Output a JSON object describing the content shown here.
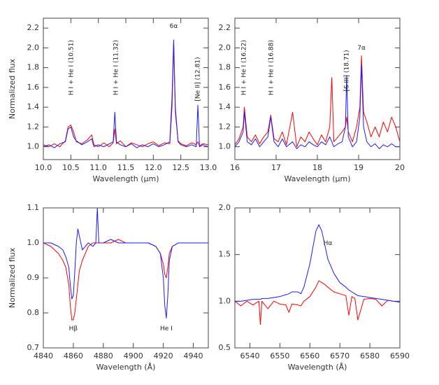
{
  "chart_data": [
    {
      "type": "line",
      "xlabel": "Wavelength (μm)",
      "ylabel": "Normalized flux",
      "xlim": [
        10.0,
        13.0
      ],
      "ylim": [
        0.87,
        2.3
      ],
      "xticks": [
        {
          "value": 10,
          "label": "10.0"
        },
        10.5,
        {
          "value": 11,
          "label": "11.0"
        },
        11.5,
        {
          "value": 12,
          "label": "12.0"
        },
        12.5,
        {
          "value": 13,
          "label": "13.0"
        }
      ],
      "yticks": [
        {
          "value": 1,
          "label": "1.0"
        },
        1.2,
        1.4,
        1.6,
        1.8,
        {
          "value": 2,
          "label": "2.0"
        },
        2.2
      ],
      "x": [
        10.0,
        10.1,
        10.2,
        10.3,
        10.4,
        10.45,
        10.5,
        10.55,
        10.6,
        10.7,
        10.8,
        10.88,
        10.92,
        11.0,
        11.1,
        11.2,
        11.27,
        11.3,
        11.33,
        11.4,
        11.5,
        11.6,
        11.7,
        11.8,
        11.9,
        12.0,
        12.1,
        12.2,
        12.3,
        12.34,
        12.37,
        12.4,
        12.45,
        12.5,
        12.6,
        12.7,
        12.78,
        12.81,
        12.84,
        12.9,
        13.0
      ],
      "series": [
        {
          "color": "#ff0000",
          "values": [
            1.02,
            1.0,
            1.03,
            1.0,
            1.06,
            1.2,
            1.22,
            1.15,
            1.05,
            1.03,
            1.07,
            1.12,
            1.02,
            1.0,
            1.04,
            1.0,
            1.04,
            1.18,
            1.03,
            1.06,
            1.0,
            1.04,
            1.02,
            1.0,
            1.03,
            1.05,
            1.01,
            1.04,
            1.03,
            1.4,
            2.05,
            1.35,
            1.06,
            1.03,
            1.01,
            1.04,
            1.02,
            1.05,
            1.01,
            1.03,
            1.02
          ]
        },
        {
          "color": "#1a1aff",
          "values": [
            1.0,
            1.02,
            0.99,
            1.03,
            1.05,
            1.18,
            1.2,
            1.1,
            1.06,
            1.02,
            1.05,
            1.08,
            1.0,
            1.02,
            1.0,
            1.03,
            1.05,
            1.35,
            1.05,
            1.02,
            1.0,
            1.03,
            0.99,
            1.02,
            1.0,
            1.03,
            1.0,
            1.02,
            1.05,
            1.5,
            2.08,
            1.4,
            1.05,
            1.02,
            1.0,
            1.02,
            1.0,
            1.42,
            1.0,
            1.02,
            1.0
          ]
        }
      ],
      "annotations": [
        {
          "text": "H I + He I (10.51)",
          "x": 10.51,
          "y": 1.52
        },
        {
          "text": "H I + He I (11.32)",
          "x": 11.32,
          "y": 1.52
        },
        {
          "text": "6α",
          "x": 12.37,
          "y": 2.22
        },
        {
          "text": "[Ne II] (12.81)",
          "x": 12.81,
          "y": 1.46
        }
      ]
    },
    {
      "type": "line",
      "xlabel": "Wavelength (μm)",
      "xlim": [
        16,
        20
      ],
      "ylim": [
        0.87,
        2.3
      ],
      "xticks": [
        16,
        17,
        18,
        19,
        20
      ],
      "yticks": [
        {
          "value": 1,
          "label": "1.0"
        },
        1.2,
        1.4,
        1.6,
        1.8,
        {
          "value": 2,
          "label": "2.0"
        },
        2.2
      ],
      "x": [
        16.0,
        16.1,
        16.2,
        16.23,
        16.3,
        16.4,
        16.5,
        16.6,
        16.7,
        16.8,
        16.87,
        16.95,
        17.05,
        17.15,
        17.25,
        17.4,
        17.5,
        17.6,
        17.7,
        17.8,
        17.9,
        18.0,
        18.1,
        18.2,
        18.3,
        18.35,
        18.4,
        18.5,
        18.6,
        18.68,
        18.71,
        18.75,
        18.85,
        18.95,
        19.03,
        19.07,
        19.12,
        19.2,
        19.3,
        19.4,
        19.5,
        19.6,
        19.7,
        19.8,
        19.9,
        20.0
      ],
      "series": [
        {
          "color": "#ff0000",
          "values": [
            1.02,
            1.08,
            1.2,
            1.4,
            1.1,
            1.05,
            1.12,
            1.03,
            1.1,
            1.15,
            1.32,
            1.08,
            1.05,
            1.15,
            1.02,
            1.35,
            1.0,
            1.1,
            1.05,
            1.15,
            1.08,
            1.02,
            1.12,
            1.05,
            1.2,
            1.7,
            1.05,
            1.1,
            1.15,
            1.2,
            1.3,
            1.15,
            1.05,
            1.2,
            1.4,
            1.92,
            1.35,
            1.25,
            1.1,
            1.2,
            1.1,
            1.25,
            1.15,
            1.3,
            1.2,
            1.05
          ]
        },
        {
          "color": "#1a1aff",
          "values": [
            1.0,
            1.05,
            1.15,
            1.35,
            1.05,
            1.02,
            1.08,
            1.0,
            1.05,
            1.1,
            1.3,
            1.05,
            1.0,
            1.08,
            1.0,
            1.05,
            0.98,
            1.02,
            1.0,
            1.05,
            1.02,
            1.0,
            1.05,
            1.02,
            1.1,
            1.05,
            1.0,
            1.03,
            1.05,
            1.2,
            1.72,
            1.1,
            1.0,
            1.05,
            1.3,
            1.83,
            1.2,
            1.05,
            1.0,
            1.03,
            0.98,
            1.02,
            1.0,
            1.03,
            1.0,
            1.0
          ]
        }
      ],
      "annotations": [
        {
          "text": "H I + He I (16.22)",
          "x": 16.22,
          "y": 1.52
        },
        {
          "text": "H I + He I (16.88)",
          "x": 16.88,
          "y": 1.52
        },
        {
          "text": "[S III] (18.71)",
          "x": 18.71,
          "y": 1.56
        },
        {
          "text": "7α",
          "x": 19.07,
          "y": 2.0
        }
      ]
    },
    {
      "type": "line",
      "xlabel": "Wavelength (Å)",
      "ylabel": "Normalized flux",
      "xlim": [
        4840,
        4950
      ],
      "ylim": [
        0.7,
        1.1
      ],
      "xticks": [
        4840,
        4860,
        4880,
        4900,
        4920,
        4940
      ],
      "yticks": [
        0.7,
        0.8,
        0.9,
        {
          "value": 1,
          "label": "1.0"
        },
        1.1
      ],
      "x": [
        4840,
        4845,
        4850,
        4853,
        4855,
        4857,
        4858,
        4859,
        4860,
        4861,
        4862,
        4863,
        4864,
        4866,
        4868,
        4870,
        4873,
        4875,
        4876,
        4877,
        4880,
        4885,
        4890,
        4895,
        4900,
        4905,
        4910,
        4915,
        4918,
        4920,
        4921,
        4922,
        4923,
        4924,
        4926,
        4930,
        4935,
        4940,
        4945,
        4950
      ],
      "series": [
        {
          "color": "#ff0000",
          "values": [
            1.0,
            0.99,
            0.97,
            0.95,
            0.93,
            0.88,
            0.82,
            0.78,
            0.78,
            0.8,
            0.84,
            0.88,
            0.92,
            0.95,
            0.97,
            0.99,
            1.0,
            1.0,
            1.0,
            1.0,
            1.0,
            1.0,
            1.01,
            1.0,
            1.0,
            1.0,
            1.0,
            0.99,
            0.97,
            0.94,
            0.91,
            0.9,
            0.93,
            0.97,
            0.99,
            1.0,
            1.0,
            1.0,
            1.0,
            1.0
          ]
        },
        {
          "color": "#1a1aff",
          "values": [
            1.0,
            1.0,
            0.99,
            0.98,
            0.96,
            0.93,
            0.88,
            0.84,
            0.85,
            0.92,
            1.0,
            1.04,
            1.02,
            0.98,
            0.99,
            1.0,
            0.99,
            1.0,
            1.1,
            1.0,
            1.0,
            1.01,
            1.0,
            1.0,
            1.0,
            1.0,
            1.0,
            0.99,
            0.97,
            0.9,
            0.82,
            0.785,
            0.85,
            0.95,
            0.99,
            1.0,
            1.0,
            1.0,
            1.0,
            1.0
          ]
        }
      ],
      "annotations": [
        {
          "text": "Hβ",
          "x": 4860,
          "y": 0.755
        },
        {
          "text": "He I",
          "x": 4922,
          "y": 0.755
        }
      ]
    },
    {
      "type": "line",
      "xlabel": "Wavelength (Å)",
      "xlim": [
        6535,
        6590
      ],
      "ylim": [
        0.5,
        2.0
      ],
      "xticks": [
        6540,
        6550,
        6560,
        6570,
        6580,
        6590
      ],
      "yticks": [
        0.5,
        {
          "value": 1,
          "label": "1.0"
        },
        1.5,
        {
          "value": 2,
          "label": "2.0"
        }
      ],
      "x": [
        6535,
        6537,
        6539,
        6541,
        6543,
        6543.5,
        6544,
        6546,
        6548,
        6550,
        6552,
        6553,
        6554,
        6556,
        6557,
        6558,
        6560,
        6562,
        6563,
        6564,
        6565,
        6566,
        6568,
        6570,
        6572,
        6573,
        6574,
        6575,
        6576,
        6578,
        6580,
        6582,
        6584,
        6586,
        6588,
        6590
      ],
      "series": [
        {
          "color": "#ff0000",
          "values": [
            1.0,
            0.95,
            1.0,
            0.96,
            1.0,
            0.75,
            1.0,
            0.92,
            1.0,
            0.97,
            0.96,
            0.88,
            0.97,
            0.96,
            0.95,
            1.0,
            1.05,
            1.15,
            1.22,
            1.2,
            1.18,
            1.15,
            1.1,
            1.08,
            1.06,
            0.85,
            1.05,
            1.03,
            0.8,
            1.02,
            1.03,
            1.02,
            0.95,
            1.01,
            1.0,
            0.99
          ]
        },
        {
          "color": "#1a1aff",
          "values": [
            1.0,
            1.0,
            1.01,
            1.02,
            1.02,
            1.02,
            1.03,
            1.03,
            1.04,
            1.05,
            1.07,
            1.08,
            1.1,
            1.1,
            1.08,
            1.15,
            1.4,
            1.75,
            1.82,
            1.75,
            1.6,
            1.45,
            1.3,
            1.2,
            1.15,
            1.12,
            1.1,
            1.08,
            1.06,
            1.05,
            1.04,
            1.03,
            1.02,
            1.01,
            1.0,
            0.99
          ]
        }
      ],
      "annotations": [
        {
          "text": "Hα",
          "x": 6566,
          "y": 1.62
        }
      ]
    }
  ]
}
